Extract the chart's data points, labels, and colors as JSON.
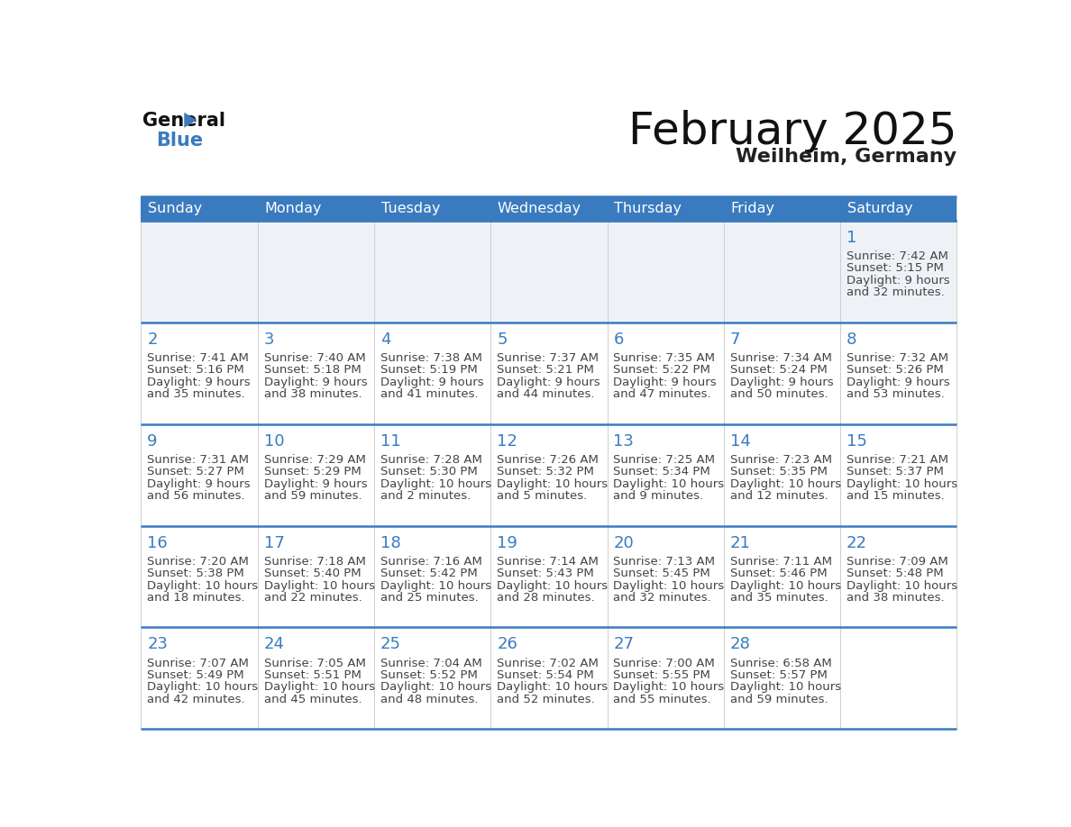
{
  "title": "February 2025",
  "subtitle": "Weilheim, Germany",
  "header_bg_color": "#3a7bbf",
  "header_text_color": "#ffffff",
  "cell_bg_color": "#ffffff",
  "alt_cell_bg_color": "#eef2f7",
  "day_number_color": "#3a7bbf",
  "info_text_color": "#444444",
  "border_color": "#3a7bbf",
  "grid_color": "#cccccc",
  "days_of_week": [
    "Sunday",
    "Monday",
    "Tuesday",
    "Wednesday",
    "Thursday",
    "Friday",
    "Saturday"
  ],
  "calendar_data": [
    [
      null,
      null,
      null,
      null,
      null,
      null,
      {
        "day": 1,
        "sunrise": "7:42 AM",
        "sunset": "5:15 PM",
        "daylight_line1": "Daylight: 9 hours",
        "daylight_line2": "and 32 minutes."
      }
    ],
    [
      {
        "day": 2,
        "sunrise": "7:41 AM",
        "sunset": "5:16 PM",
        "daylight_line1": "Daylight: 9 hours",
        "daylight_line2": "and 35 minutes."
      },
      {
        "day": 3,
        "sunrise": "7:40 AM",
        "sunset": "5:18 PM",
        "daylight_line1": "Daylight: 9 hours",
        "daylight_line2": "and 38 minutes."
      },
      {
        "day": 4,
        "sunrise": "7:38 AM",
        "sunset": "5:19 PM",
        "daylight_line1": "Daylight: 9 hours",
        "daylight_line2": "and 41 minutes."
      },
      {
        "day": 5,
        "sunrise": "7:37 AM",
        "sunset": "5:21 PM",
        "daylight_line1": "Daylight: 9 hours",
        "daylight_line2": "and 44 minutes."
      },
      {
        "day": 6,
        "sunrise": "7:35 AM",
        "sunset": "5:22 PM",
        "daylight_line1": "Daylight: 9 hours",
        "daylight_line2": "and 47 minutes."
      },
      {
        "day": 7,
        "sunrise": "7:34 AM",
        "sunset": "5:24 PM",
        "daylight_line1": "Daylight: 9 hours",
        "daylight_line2": "and 50 minutes."
      },
      {
        "day": 8,
        "sunrise": "7:32 AM",
        "sunset": "5:26 PM",
        "daylight_line1": "Daylight: 9 hours",
        "daylight_line2": "and 53 minutes."
      }
    ],
    [
      {
        "day": 9,
        "sunrise": "7:31 AM",
        "sunset": "5:27 PM",
        "daylight_line1": "Daylight: 9 hours",
        "daylight_line2": "and 56 minutes."
      },
      {
        "day": 10,
        "sunrise": "7:29 AM",
        "sunset": "5:29 PM",
        "daylight_line1": "Daylight: 9 hours",
        "daylight_line2": "and 59 minutes."
      },
      {
        "day": 11,
        "sunrise": "7:28 AM",
        "sunset": "5:30 PM",
        "daylight_line1": "Daylight: 10 hours",
        "daylight_line2": "and 2 minutes."
      },
      {
        "day": 12,
        "sunrise": "7:26 AM",
        "sunset": "5:32 PM",
        "daylight_line1": "Daylight: 10 hours",
        "daylight_line2": "and 5 minutes."
      },
      {
        "day": 13,
        "sunrise": "7:25 AM",
        "sunset": "5:34 PM",
        "daylight_line1": "Daylight: 10 hours",
        "daylight_line2": "and 9 minutes."
      },
      {
        "day": 14,
        "sunrise": "7:23 AM",
        "sunset": "5:35 PM",
        "daylight_line1": "Daylight: 10 hours",
        "daylight_line2": "and 12 minutes."
      },
      {
        "day": 15,
        "sunrise": "7:21 AM",
        "sunset": "5:37 PM",
        "daylight_line1": "Daylight: 10 hours",
        "daylight_line2": "and 15 minutes."
      }
    ],
    [
      {
        "day": 16,
        "sunrise": "7:20 AM",
        "sunset": "5:38 PM",
        "daylight_line1": "Daylight: 10 hours",
        "daylight_line2": "and 18 minutes."
      },
      {
        "day": 17,
        "sunrise": "7:18 AM",
        "sunset": "5:40 PM",
        "daylight_line1": "Daylight: 10 hours",
        "daylight_line2": "and 22 minutes."
      },
      {
        "day": 18,
        "sunrise": "7:16 AM",
        "sunset": "5:42 PM",
        "daylight_line1": "Daylight: 10 hours",
        "daylight_line2": "and 25 minutes."
      },
      {
        "day": 19,
        "sunrise": "7:14 AM",
        "sunset": "5:43 PM",
        "daylight_line1": "Daylight: 10 hours",
        "daylight_line2": "and 28 minutes."
      },
      {
        "day": 20,
        "sunrise": "7:13 AM",
        "sunset": "5:45 PM",
        "daylight_line1": "Daylight: 10 hours",
        "daylight_line2": "and 32 minutes."
      },
      {
        "day": 21,
        "sunrise": "7:11 AM",
        "sunset": "5:46 PM",
        "daylight_line1": "Daylight: 10 hours",
        "daylight_line2": "and 35 minutes."
      },
      {
        "day": 22,
        "sunrise": "7:09 AM",
        "sunset": "5:48 PM",
        "daylight_line1": "Daylight: 10 hours",
        "daylight_line2": "and 38 minutes."
      }
    ],
    [
      {
        "day": 23,
        "sunrise": "7:07 AM",
        "sunset": "5:49 PM",
        "daylight_line1": "Daylight: 10 hours",
        "daylight_line2": "and 42 minutes."
      },
      {
        "day": 24,
        "sunrise": "7:05 AM",
        "sunset": "5:51 PM",
        "daylight_line1": "Daylight: 10 hours",
        "daylight_line2": "and 45 minutes."
      },
      {
        "day": 25,
        "sunrise": "7:04 AM",
        "sunset": "5:52 PM",
        "daylight_line1": "Daylight: 10 hours",
        "daylight_line2": "and 48 minutes."
      },
      {
        "day": 26,
        "sunrise": "7:02 AM",
        "sunset": "5:54 PM",
        "daylight_line1": "Daylight: 10 hours",
        "daylight_line2": "and 52 minutes."
      },
      {
        "day": 27,
        "sunrise": "7:00 AM",
        "sunset": "5:55 PM",
        "daylight_line1": "Daylight: 10 hours",
        "daylight_line2": "and 55 minutes."
      },
      {
        "day": 28,
        "sunrise": "6:58 AM",
        "sunset": "5:57 PM",
        "daylight_line1": "Daylight: 10 hours",
        "daylight_line2": "and 59 minutes."
      },
      null
    ]
  ]
}
